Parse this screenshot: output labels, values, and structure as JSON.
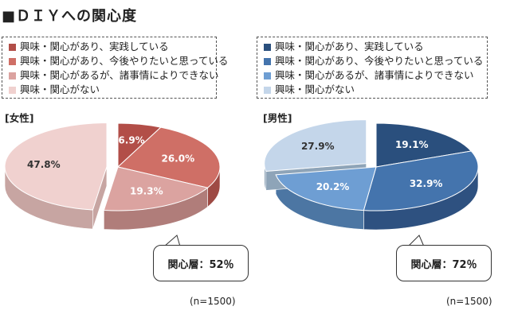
{
  "title": "■ＤＩＹへの関心度",
  "n_label": "(n=1500)",
  "legend_labels": [
    "興味・関心があり、実践している",
    "興味・関心があり、今後やりたいと思っている",
    "興味・関心があるが、諸事情によりできない",
    "興味・関心がない"
  ],
  "female": {
    "label": "[女性]",
    "callout": "関心層：52％",
    "colors": [
      "#b24e48",
      "#cf6f66",
      "#dba3a0",
      "#f0d1cf"
    ],
    "side_colors": [
      "#7d2f2b",
      "#9e4a44",
      "#b07d7a",
      "#c7a5a2"
    ]
  },
  "male": {
    "label": "[男性]",
    "callout": "関心層：72％",
    "colors": [
      "#2a4f7d",
      "#4474ad",
      "#6e9ed3",
      "#c4d6ea"
    ],
    "side_colors": [
      "#1c3557",
      "#2e5180",
      "#4c76a3",
      "#8ea4b8"
    ]
  },
  "chart_data": [
    {
      "type": "pie",
      "title": "女性",
      "categories": [
        "興味・関心があり、実践している",
        "興味・関心があり、今後やりたいと思っている",
        "興味・関心があるが、諸事情によりできない",
        "興味・関心がない"
      ],
      "values": [
        6.9,
        26.0,
        19.3,
        47.8
      ],
      "value_labels": [
        "6.9%",
        "26.0%",
        "19.3%",
        "47.8%"
      ]
    },
    {
      "type": "pie",
      "title": "男性",
      "categories": [
        "興味・関心があり、実践している",
        "興味・関心があり、今後やりたいと思っている",
        "興味・関心があるが、諸事情によりできない",
        "興味・関心がない"
      ],
      "values": [
        19.1,
        32.9,
        20.2,
        27.9
      ],
      "value_labels": [
        "19.1%",
        "32.9%",
        "20.2%",
        "27.9%"
      ]
    }
  ]
}
